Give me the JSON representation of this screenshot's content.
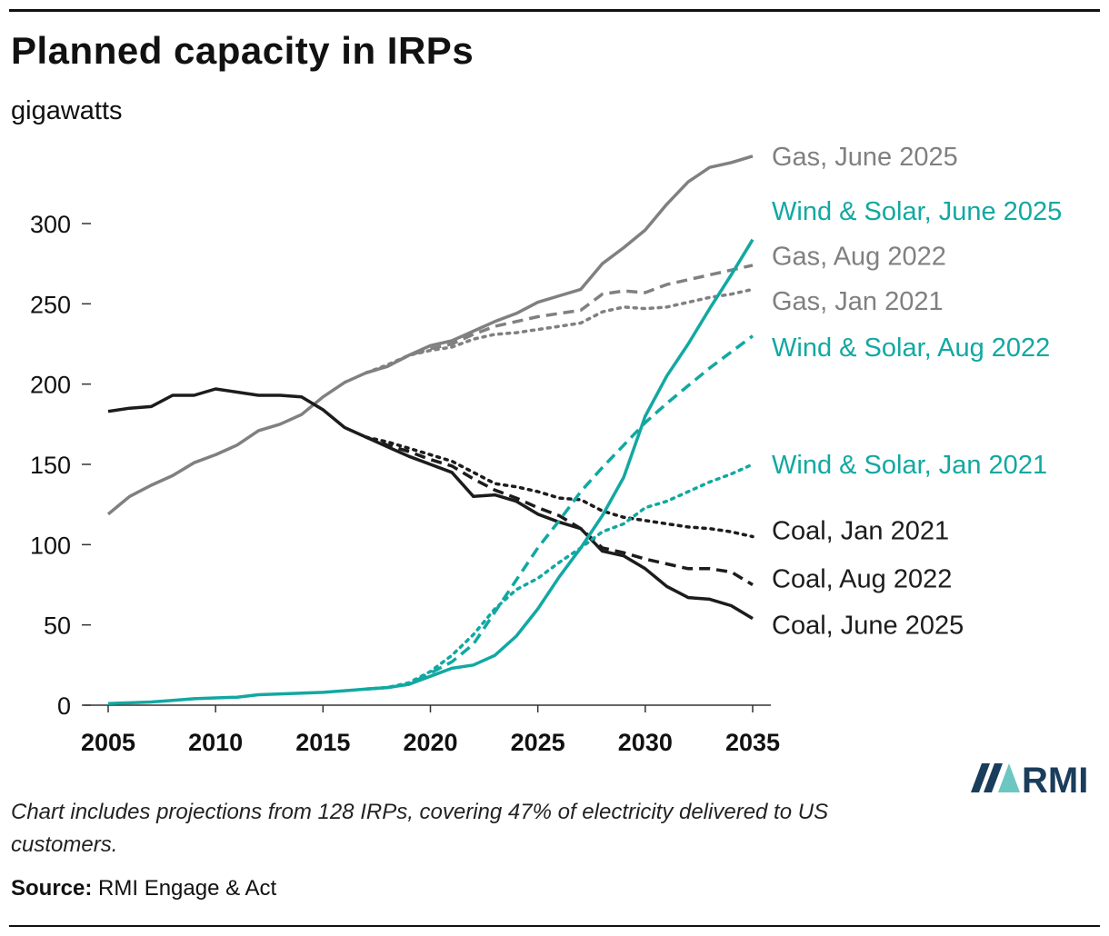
{
  "header": {
    "title": "Planned capacity in IRPs",
    "subtitle": "gigawatts"
  },
  "footer": {
    "note": "Chart includes projections from 128 IRPs, covering 47% of electricity delivered to US customers.",
    "source_label": "Source:",
    "source_text": "RMI Engage & Act",
    "logo_text": "RMI"
  },
  "colors": {
    "gas": "#808080",
    "wind_solar": "#12A8A2",
    "coal": "#1c1c1c",
    "axis": "#333333",
    "logo_dark": "#1a3d5c",
    "logo_teal": "#6cc6c2"
  },
  "chart_data": {
    "type": "line",
    "title": "Planned capacity in IRPs",
    "ylabel": "gigawatts",
    "xlabel": "",
    "xlim": [
      2005,
      2035
    ],
    "ylim": [
      0,
      340
    ],
    "x_ticks": [
      2005,
      2010,
      2015,
      2020,
      2025,
      2030,
      2035
    ],
    "y_ticks": [
      0,
      50,
      100,
      150,
      200,
      250,
      300
    ],
    "grid": false,
    "legend": "direct labels at line ends (right)",
    "series": [
      {
        "name": "Gas, June 2025",
        "group": "gas",
        "style": "solid",
        "x": [
          2005,
          2006,
          2007,
          2008,
          2009,
          2010,
          2011,
          2012,
          2013,
          2014,
          2015,
          2016,
          2017,
          2018,
          2019,
          2020,
          2021,
          2022,
          2023,
          2024,
          2025,
          2026,
          2027,
          2028,
          2029,
          2030,
          2031,
          2032,
          2033,
          2034,
          2035
        ],
        "values": [
          119,
          130,
          137,
          143,
          151,
          156,
          162,
          171,
          175,
          181,
          192,
          201,
          207,
          211,
          218,
          224,
          227,
          233,
          239,
          244,
          251,
          255,
          259,
          275,
          285,
          296,
          312,
          326,
          335,
          338,
          342
        ]
      },
      {
        "name": "Gas, Aug 2022",
        "group": "gas",
        "style": "dashed",
        "x": [
          2017,
          2018,
          2019,
          2020,
          2021,
          2022,
          2023,
          2024,
          2025,
          2026,
          2027,
          2028,
          2029,
          2030,
          2031,
          2032,
          2033,
          2034,
          2035
        ],
        "values": [
          207,
          211,
          218,
          222,
          225,
          231,
          236,
          239,
          242,
          244,
          246,
          256,
          258,
          257,
          262,
          265,
          268,
          271,
          274
        ]
      },
      {
        "name": "Gas, Jan 2021",
        "group": "gas",
        "style": "dotted",
        "x": [
          2017,
          2018,
          2019,
          2020,
          2021,
          2022,
          2023,
          2024,
          2025,
          2026,
          2027,
          2028,
          2029,
          2030,
          2031,
          2032,
          2033,
          2034,
          2035
        ],
        "values": [
          207,
          212,
          218,
          221,
          223,
          228,
          231,
          232,
          234,
          236,
          238,
          245,
          248,
          247,
          248,
          251,
          254,
          256,
          259
        ]
      },
      {
        "name": "Wind & Solar, June 2025",
        "group": "wind_solar",
        "style": "solid",
        "x": [
          2005,
          2006,
          2007,
          2008,
          2009,
          2010,
          2011,
          2012,
          2013,
          2014,
          2015,
          2016,
          2017,
          2018,
          2019,
          2020,
          2021,
          2022,
          2023,
          2024,
          2025,
          2026,
          2027,
          2028,
          2029,
          2030,
          2031,
          2032,
          2033,
          2034,
          2035
        ],
        "values": [
          1,
          1.5,
          2,
          3,
          4,
          4.5,
          5,
          6.5,
          7,
          7.5,
          8,
          9,
          10,
          11,
          13,
          18,
          23,
          25,
          31,
          43,
          60,
          80,
          98,
          118,
          142,
          180,
          205,
          225,
          247,
          268,
          290
        ]
      },
      {
        "name": "Wind & Solar, Aug 2022",
        "group": "wind_solar",
        "style": "dashed",
        "x": [
          2017,
          2018,
          2019,
          2020,
          2021,
          2022,
          2023,
          2024,
          2025,
          2026,
          2027,
          2028,
          2029,
          2030,
          2031,
          2032,
          2033,
          2034,
          2035
        ],
        "values": [
          10,
          11,
          13,
          20,
          27,
          38,
          58,
          78,
          98,
          115,
          133,
          148,
          162,
          176,
          188,
          199,
          210,
          220,
          230
        ]
      },
      {
        "name": "Wind & Solar, Jan 2021",
        "group": "wind_solar",
        "style": "dotted",
        "x": [
          2017,
          2018,
          2019,
          2020,
          2021,
          2022,
          2023,
          2024,
          2025,
          2026,
          2027,
          2028,
          2029,
          2030,
          2031,
          2032,
          2033,
          2034,
          2035
        ],
        "values": [
          10,
          11,
          14,
          21,
          31,
          44,
          60,
          72,
          79,
          89,
          98,
          108,
          113,
          123,
          127,
          133,
          139,
          144,
          150
        ]
      },
      {
        "name": "Coal, Jan 2021",
        "group": "coal",
        "style": "dotted",
        "x": [
          2017,
          2018,
          2019,
          2020,
          2021,
          2022,
          2023,
          2024,
          2025,
          2026,
          2027,
          2028,
          2029,
          2030,
          2031,
          2032,
          2033,
          2034,
          2035
        ],
        "values": [
          167,
          164,
          160,
          156,
          152,
          145,
          138,
          136,
          133,
          129,
          128,
          121,
          117,
          115,
          113,
          111,
          110,
          108,
          105
        ]
      },
      {
        "name": "Coal, Aug 2022",
        "group": "coal",
        "style": "dashed",
        "x": [
          2017,
          2018,
          2019,
          2020,
          2021,
          2022,
          2023,
          2024,
          2025,
          2026,
          2027,
          2028,
          2029,
          2030,
          2031,
          2032,
          2033,
          2034,
          2035
        ],
        "values": [
          167,
          162,
          158,
          153,
          149,
          141,
          134,
          129,
          123,
          118,
          110,
          98,
          95,
          91,
          88,
          85,
          85,
          83,
          75
        ]
      },
      {
        "name": "Coal, June 2025",
        "group": "coal",
        "style": "solid",
        "x": [
          2005,
          2006,
          2007,
          2008,
          2009,
          2010,
          2011,
          2012,
          2013,
          2014,
          2015,
          2016,
          2017,
          2018,
          2019,
          2020,
          2021,
          2022,
          2023,
          2024,
          2025,
          2026,
          2027,
          2028,
          2029,
          2030,
          2031,
          2032,
          2033,
          2034,
          2035
        ],
        "values": [
          183,
          185,
          186,
          193,
          193,
          197,
          195,
          193,
          193,
          192,
          184,
          173,
          167,
          161,
          155,
          150,
          145,
          130,
          131,
          127,
          119,
          114,
          110,
          96,
          93,
          85,
          74,
          67,
          66,
          62,
          54
        ]
      }
    ],
    "end_labels": [
      {
        "text": "Gas, June 2025",
        "group": "gas",
        "anchor_value": 342
      },
      {
        "text": "Wind & Solar, June 2025",
        "group": "wind_solar",
        "anchor_value": 308
      },
      {
        "text": "Gas, Aug 2022",
        "group": "gas",
        "anchor_value": 280
      },
      {
        "text": "Gas, Jan 2021",
        "group": "gas",
        "anchor_value": 252
      },
      {
        "text": "Wind & Solar, Aug 2022",
        "group": "wind_solar",
        "anchor_value": 223
      },
      {
        "text": "Wind & Solar, Jan 2021",
        "group": "wind_solar",
        "anchor_value": 150
      },
      {
        "text": "Coal, Jan 2021",
        "group": "coal",
        "anchor_value": 109
      },
      {
        "text": "Coal, Aug 2022",
        "group": "coal",
        "anchor_value": 79
      },
      {
        "text": "Coal, June 2025",
        "group": "coal",
        "anchor_value": 50
      }
    ]
  }
}
